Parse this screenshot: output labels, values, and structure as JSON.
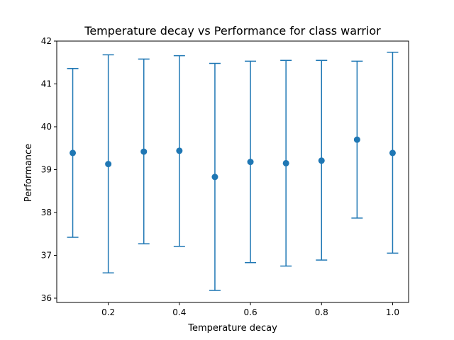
{
  "chart_data": {
    "type": "scatter",
    "title": "Temperature decay vs Performance for class warrior",
    "xlabel": "Temperature decay",
    "ylabel": "Performance",
    "xlim": [
      0.055,
      1.045
    ],
    "ylim": [
      35.9,
      42.0
    ],
    "xticks": [
      0.2,
      0.4,
      0.6,
      0.8,
      1.0
    ],
    "xtick_labels": [
      "0.2",
      "0.4",
      "0.6",
      "0.8",
      "1.0"
    ],
    "yticks": [
      36,
      37,
      38,
      39,
      40,
      41,
      42
    ],
    "ytick_labels": [
      "36",
      "37",
      "38",
      "39",
      "40",
      "41",
      "42"
    ],
    "grid": false,
    "color": "#1f77b4",
    "series": [
      {
        "x": [
          0.1,
          0.2,
          0.3,
          0.4,
          0.5,
          0.6,
          0.7,
          0.8,
          0.9,
          1.0
        ],
        "y": [
          39.39,
          39.13,
          39.42,
          39.44,
          38.83,
          39.18,
          39.15,
          39.21,
          39.7,
          39.39
        ],
        "err_low": [
          37.42,
          36.59,
          37.27,
          37.21,
          36.18,
          36.83,
          36.75,
          36.89,
          37.87,
          37.05
        ],
        "err_high": [
          41.36,
          41.68,
          41.58,
          41.66,
          41.48,
          41.53,
          41.55,
          41.55,
          41.53,
          41.74
        ]
      }
    ]
  }
}
